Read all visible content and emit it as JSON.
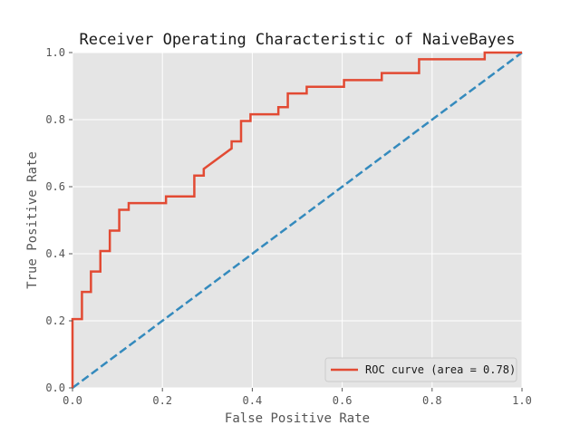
{
  "chart_data": {
    "type": "line",
    "title": "Receiver Operating Characteristic of NaiveBayes",
    "xlabel": "False Positive Rate",
    "ylabel": "True Positive Rate",
    "xlim": [
      0.0,
      1.0
    ],
    "ylim": [
      0.0,
      1.0
    ],
    "grid": true,
    "legend_position": "lower-right",
    "x_ticks": [
      "0.0",
      "0.2",
      "0.4",
      "0.6",
      "0.8",
      "1.0"
    ],
    "y_ticks": [
      "0.0",
      "0.2",
      "0.4",
      "0.6",
      "0.8",
      "1.0"
    ],
    "series": [
      {
        "name": "ROC curve (area = 0.78)",
        "color": "#e24a33",
        "style": "solid",
        "points": [
          [
            0.0,
            0.0
          ],
          [
            0.0,
            0.205
          ],
          [
            0.021,
            0.205
          ],
          [
            0.021,
            0.286
          ],
          [
            0.041,
            0.286
          ],
          [
            0.041,
            0.347
          ],
          [
            0.062,
            0.347
          ],
          [
            0.062,
            0.408
          ],
          [
            0.083,
            0.408
          ],
          [
            0.083,
            0.469
          ],
          [
            0.104,
            0.469
          ],
          [
            0.104,
            0.531
          ],
          [
            0.125,
            0.531
          ],
          [
            0.125,
            0.551
          ],
          [
            0.208,
            0.551
          ],
          [
            0.208,
            0.571
          ],
          [
            0.271,
            0.571
          ],
          [
            0.271,
            0.633
          ],
          [
            0.292,
            0.633
          ],
          [
            0.292,
            0.653
          ],
          [
            0.354,
            0.714
          ],
          [
            0.354,
            0.735
          ],
          [
            0.375,
            0.735
          ],
          [
            0.375,
            0.796
          ],
          [
            0.396,
            0.796
          ],
          [
            0.396,
            0.816
          ],
          [
            0.458,
            0.816
          ],
          [
            0.458,
            0.837
          ],
          [
            0.479,
            0.837
          ],
          [
            0.479,
            0.878
          ],
          [
            0.521,
            0.878
          ],
          [
            0.521,
            0.898
          ],
          [
            0.604,
            0.898
          ],
          [
            0.604,
            0.918
          ],
          [
            0.688,
            0.918
          ],
          [
            0.688,
            0.939
          ],
          [
            0.771,
            0.939
          ],
          [
            0.771,
            0.98
          ],
          [
            0.917,
            0.98
          ],
          [
            0.917,
            1.0
          ],
          [
            1.0,
            1.0
          ]
        ]
      },
      {
        "color": "#348abd",
        "style": "dashed",
        "points": [
          [
            0.0,
            0.0
          ],
          [
            1.0,
            1.0
          ]
        ]
      }
    ]
  }
}
